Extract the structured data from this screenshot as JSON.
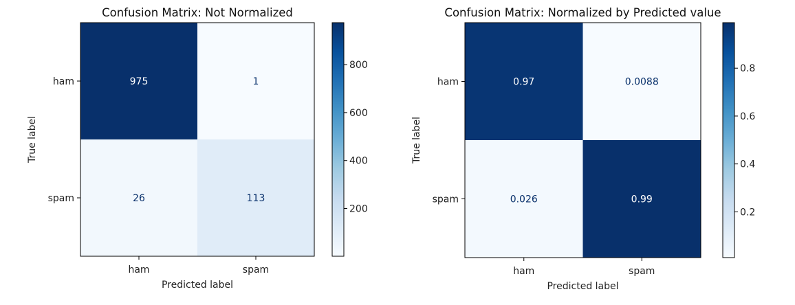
{
  "chart_data": [
    {
      "type": "heatmap",
      "title": "Confusion Matrix: Not Normalized",
      "xlabel": "Predicted label",
      "ylabel": "True label",
      "x_categories": [
        "ham",
        "spam"
      ],
      "y_categories": [
        "ham",
        "spam"
      ],
      "values": [
        [
          975,
          1
        ],
        [
          26,
          113
        ]
      ],
      "cell_labels": [
        [
          "975",
          "1"
        ],
        [
          "26",
          "113"
        ]
      ],
      "colormap": "Blues",
      "color_range": [
        1,
        975
      ],
      "colorbar_ticks": [
        200,
        400,
        600,
        800
      ],
      "colorbar_tick_labels": [
        "200",
        "400",
        "600",
        "800"
      ]
    },
    {
      "type": "heatmap",
      "title": "Confusion Matrix: Normalized by Predicted value",
      "xlabel": "Predicted label",
      "ylabel": "True label",
      "x_categories": [
        "ham",
        "spam"
      ],
      "y_categories": [
        "ham",
        "spam"
      ],
      "values": [
        [
          0.97,
          0.0088
        ],
        [
          0.026,
          0.99
        ]
      ],
      "cell_labels": [
        [
          "0.97",
          "0.0088"
        ],
        [
          "0.026",
          "0.99"
        ]
      ],
      "colormap": "Blues",
      "color_range": [
        0.0088,
        0.99
      ],
      "colorbar_ticks": [
        0.2,
        0.4,
        0.6,
        0.8
      ],
      "colorbar_tick_labels": [
        "0.2",
        "0.4",
        "0.6",
        "0.8"
      ]
    }
  ],
  "colors": {
    "cmap_low": "#f7fbff",
    "cmap_high": "#08306b",
    "text_dark": "#08306b",
    "text_light": "#ffffff",
    "axis": "#000000"
  }
}
